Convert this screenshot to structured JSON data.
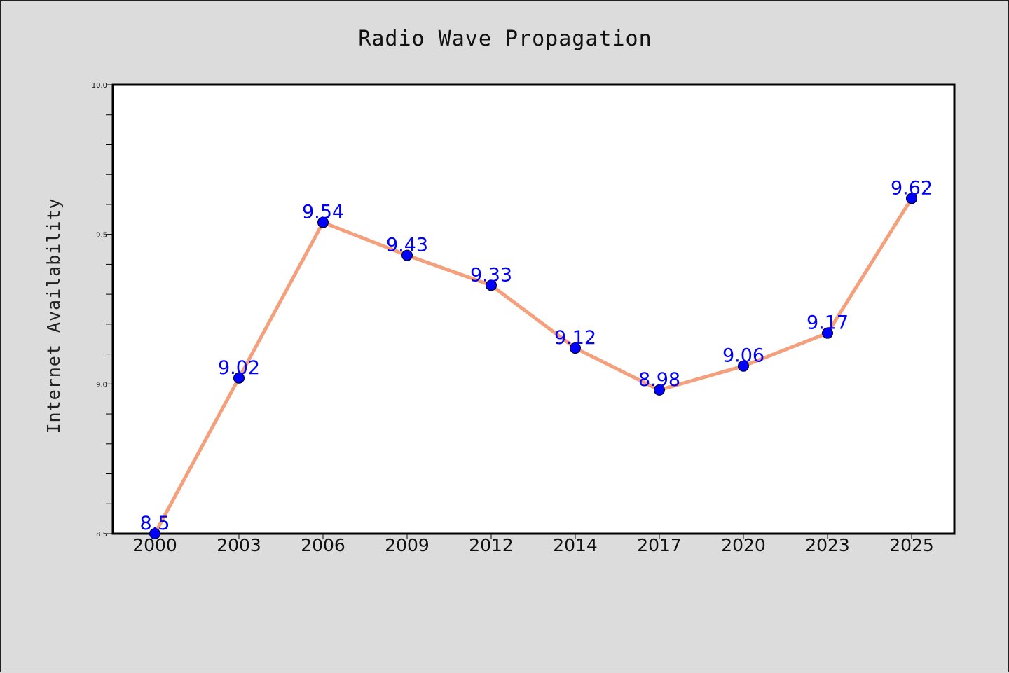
{
  "colors": {
    "background": "#dcdcdc",
    "plot_background": "#ffffff",
    "line": "#f4a07c",
    "marker": "#0000ff",
    "data_label": "#0000ff"
  },
  "chart_data": {
    "type": "line",
    "title": "Radio Wave Propagation",
    "xlabel": "",
    "ylabel": "Internet Availability",
    "categories": [
      "2000",
      "2003",
      "2006",
      "2009",
      "2012",
      "2014",
      "2017",
      "2020",
      "2023",
      "2025"
    ],
    "series": [
      {
        "values": [
          8.5,
          9.02,
          9.54,
          9.43,
          9.33,
          9.12,
          8.98,
          9.06,
          9.17,
          9.62
        ],
        "labels": [
          "8.5",
          "9.02",
          "9.54",
          "9.43",
          "9.33",
          "9.12",
          "8.98",
          "9.06",
          "9.17",
          "9.62"
        ]
      }
    ],
    "ylim": [
      8.5,
      10.0
    ],
    "yticks": [
      "8.5",
      "9.0",
      "9.5",
      "10.0"
    ],
    "grid": false,
    "legend": "none"
  }
}
